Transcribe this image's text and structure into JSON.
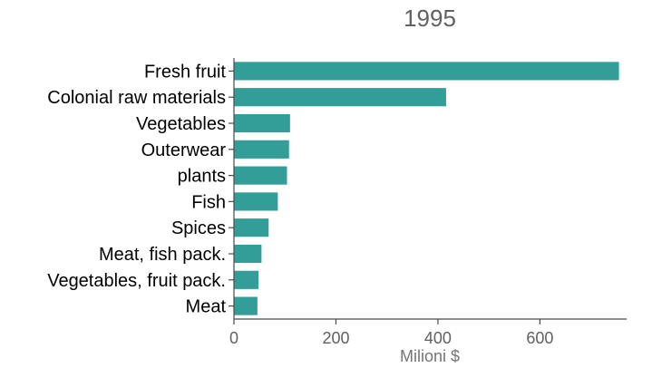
{
  "chart_data": {
    "type": "bar",
    "orientation": "horizontal",
    "title": "1995",
    "categories": [
      "Fresh fruit",
      "Colonial raw materials",
      "Vegetables",
      "Outerwear",
      "plants",
      "Fish",
      "Spices",
      "Meat, fish pack.",
      "Vegetables, fruit pack.",
      "Meat"
    ],
    "values": [
      755,
      416,
      110,
      108,
      104,
      86,
      68,
      54,
      48,
      46
    ],
    "xlabel": "Milioni $",
    "ylabel": "",
    "xlim": [
      0,
      770
    ],
    "xticks": [
      0,
      200,
      400,
      600
    ],
    "bar_color": "#329e97",
    "grid": false,
    "legend": "none"
  }
}
